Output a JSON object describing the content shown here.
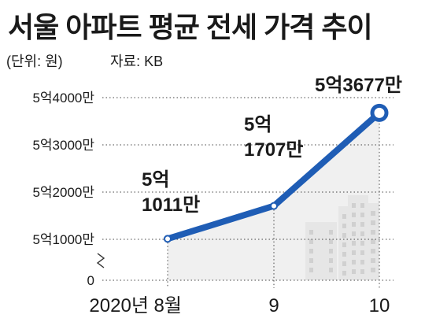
{
  "header": {
    "title": "서울 아파트 평균 전세 가격 추이",
    "unit": "(단위: 원)",
    "source": "자료: KB"
  },
  "colors": {
    "line": "#1f5db5",
    "marker_fill": "#ffffff",
    "area_fill": "#f0f0f0",
    "building_fill": "#e6e6e6",
    "grid": "#444444"
  },
  "chart_data": {
    "type": "line",
    "title": "서울 아파트 평균 전세 가격 추이",
    "categories": [
      "2020년 8월",
      "9",
      "10"
    ],
    "values": [
      51011,
      51707,
      53677
    ],
    "value_unit": "만원",
    "data_labels": [
      [
        "5억",
        "1011만"
      ],
      [
        "5억",
        "1707만"
      ],
      [
        "5억3677만"
      ]
    ],
    "y_ticks": [
      {
        "value": 0,
        "label": "0"
      },
      {
        "value": 51000,
        "label": "5억1000만"
      },
      {
        "value": 52000,
        "label": "5억2000만"
      },
      {
        "value": 53000,
        "label": "5억3000만"
      },
      {
        "value": 54000,
        "label": "5억4000만"
      }
    ],
    "ylim": [
      51000,
      54000
    ],
    "axis_break": true,
    "grid": true,
    "legend": "none"
  }
}
